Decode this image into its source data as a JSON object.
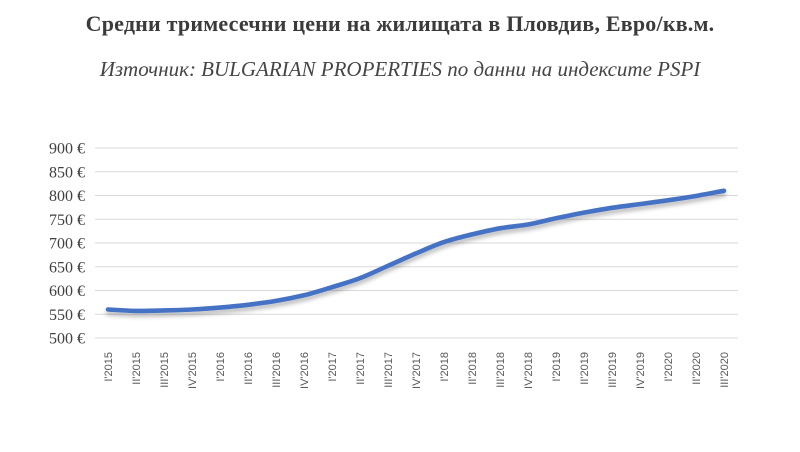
{
  "header": {
    "title": "Средни тримесечни цени на жилищата в Пловдив, Евро/кв.м.",
    "subtitle": "Източник: BULGARIAN PROPERTIES по данни на индексите PSPI"
  },
  "chart_data": {
    "type": "line",
    "title": "Средни тримесечни цени на жилищата в Пловдив, Евро/кв.м.",
    "subtitle": "Източник: BULGARIAN PROPERTIES по данни на индексите PSPI",
    "categories": [
      "I'2015",
      "II'2015",
      "III'2015",
      "IV'2015",
      "I'2016",
      "II'2016",
      "III'2016",
      "IV'2016",
      "I'2017",
      "II'2017",
      "III'2017",
      "IV'2017",
      "I'2018",
      "II'2018",
      "III'2018",
      "IV'2018",
      "I'2019",
      "II'2019",
      "III'2019",
      "IV'2019",
      "I'2020",
      "II'2020",
      "III'2020"
    ],
    "values": [
      560,
      557,
      558,
      560,
      564,
      570,
      578,
      590,
      607,
      626,
      652,
      678,
      702,
      718,
      731,
      739,
      752,
      764,
      774,
      782,
      790,
      799,
      810
    ],
    "unit": "€/кв.м.",
    "ylim": [
      500,
      900
    ],
    "ytick_step": 50,
    "ytick_suffix": " €",
    "grid": true,
    "smooth": true,
    "legend": "none",
    "colors": {
      "line": "#4472C4",
      "gridline": "#D9D9D9",
      "title_text": "#3B3B3B",
      "subtitle_text": "#454545",
      "ytick_text": "#404040",
      "xtick_text": "#595959",
      "background": "#FFFFFF"
    }
  }
}
